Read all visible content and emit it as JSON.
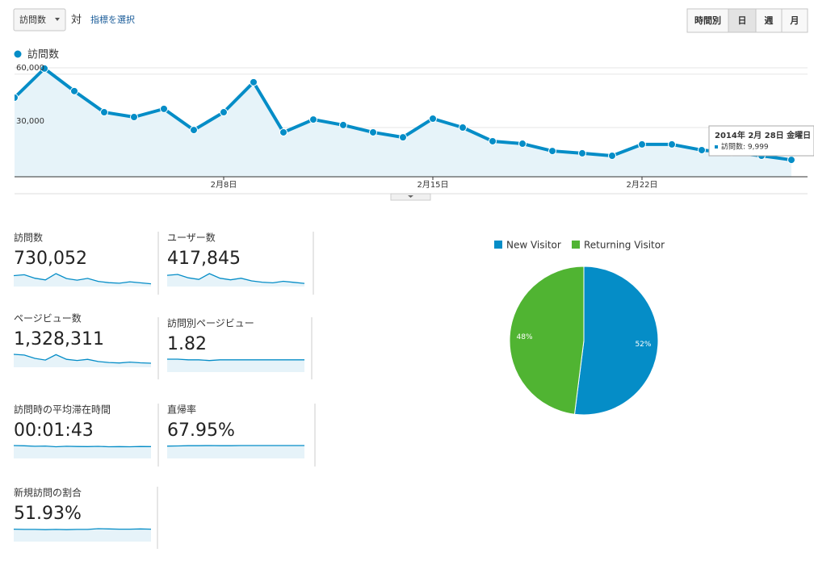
{
  "toolbar": {
    "metric": "訪問数",
    "versus": "対",
    "select_metric": "指標を選択",
    "periods": [
      "時間別",
      "日",
      "週",
      "月"
    ],
    "active_period": 1
  },
  "chart_data": [
    {
      "type": "line",
      "categories": [
        null,
        null,
        null,
        null,
        null,
        null,
        null,
        "2月8日",
        null,
        null,
        null,
        null,
        null,
        null,
        "2月15日",
        null,
        null,
        null,
        null,
        null,
        null,
        "2月22日",
        null,
        null,
        null,
        null,
        null
      ],
      "series": [
        {
          "name": "訪問数",
          "color": "#058dc7",
          "values": [
            46800,
            63200,
            50500,
            38600,
            35900,
            40500,
            28600,
            38600,
            55500,
            27300,
            34500,
            31400,
            27300,
            24500,
            35000,
            30000,
            22300,
            20900,
            16800,
            15500,
            14100,
            20500,
            20500,
            17300,
            15900,
            14100,
            11800
          ]
        }
      ],
      "ylim": [
        2300,
        63600
      ],
      "yticks": [
        {
          "value": 30000,
          "label": "30,000"
        },
        {
          "value": 60000,
          "label": "60,000"
        }
      ],
      "grid": true,
      "tooltip": {
        "title": "2014年 2月 28日 金曜日",
        "line": "訪問数: 9,999"
      }
    },
    {
      "type": "pie",
      "categories": [
        "New Visitor",
        "Returning Visitor"
      ],
      "values": [
        52,
        48
      ],
      "value_labels": [
        "52%",
        "48%"
      ],
      "colors": [
        "#058dc7",
        "#50b432"
      ]
    }
  ],
  "metrics": [
    {
      "label": "訪問数",
      "value": "730,052",
      "trend": [
        46800,
        50500,
        35900,
        28600,
        55500,
        34500,
        27300,
        35000,
        22300,
        16800,
        14100,
        20500,
        15900,
        11800
      ]
    },
    {
      "label": "ユーザー数",
      "value": "417,845",
      "trend": [
        27000,
        29000,
        21000,
        17000,
        31000,
        20000,
        16000,
        20000,
        13500,
        10500,
        9000,
        12500,
        10000,
        7500
      ]
    },
    {
      "label": "ページビュー数",
      "value": "1,328,311",
      "trend": [
        90000,
        85000,
        62000,
        50000,
        88000,
        55000,
        47000,
        55000,
        40000,
        33000,
        30000,
        36000,
        31000,
        28000
      ]
    },
    {
      "label": "訪問別ページビュー",
      "value": "1.82",
      "trend": [
        1.9,
        1.9,
        1.8,
        1.8,
        1.7,
        1.8,
        1.8,
        1.8,
        1.8,
        1.8,
        1.8,
        1.8,
        1.8,
        1.8
      ]
    },
    {
      "label": "訪問時の平均滞在時間",
      "value": "00:01:43",
      "trend": [
        110,
        108,
        104,
        106,
        100,
        104,
        102,
        101,
        103,
        100,
        101,
        100,
        102,
        101
      ]
    },
    {
      "label": "直帰率",
      "value": "67.95%",
      "trend": [
        66,
        67,
        68,
        68,
        69,
        68,
        68,
        69,
        69,
        69,
        69,
        69,
        69,
        69
      ]
    },
    {
      "label": "新規訪問の割合",
      "value": "51.93%",
      "trend": [
        52,
        51,
        51,
        50,
        51,
        50,
        51,
        51,
        54,
        53,
        52,
        52,
        53,
        52
      ]
    }
  ]
}
